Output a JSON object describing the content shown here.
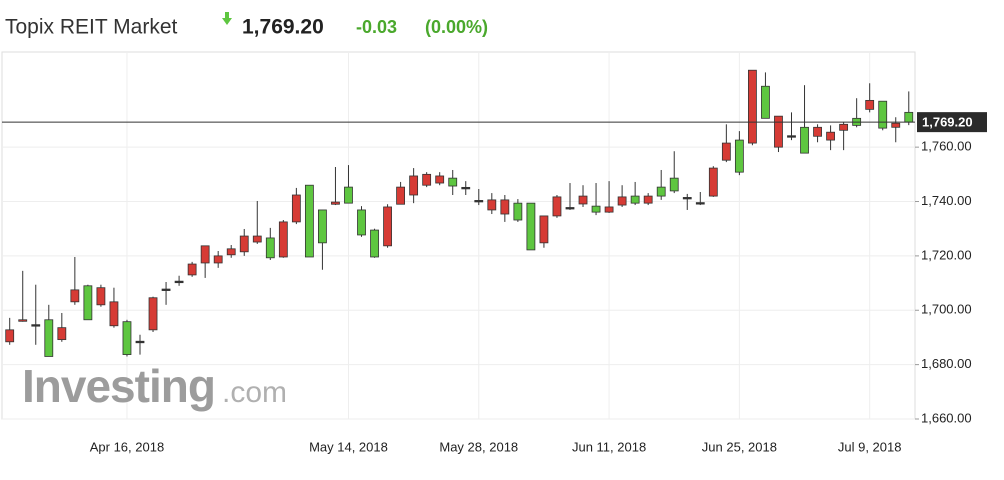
{
  "chart_data": {
    "type": "candlestick",
    "title": "Topix REIT Market",
    "price": "1,769.20",
    "change": "-0.03",
    "change_pct": "(0.00%)",
    "watermark": {
      "brand": "Investing",
      "suffix": ".com"
    },
    "categories": [
      null,
      null,
      null,
      null,
      null,
      null,
      null,
      null,
      null,
      "Apr 16, 2018",
      null,
      null,
      null,
      null,
      null,
      null,
      null,
      null,
      null,
      null,
      null,
      null,
      null,
      null,
      null,
      null,
      "May 14, 2018",
      null,
      null,
      null,
      null,
      null,
      null,
      null,
      null,
      null,
      "May 28, 2018",
      null,
      null,
      null,
      null,
      null,
      null,
      null,
      null,
      null,
      "Jun 11, 2018",
      null,
      null,
      null,
      null,
      null,
      null,
      null,
      null,
      null,
      "Jun 25, 2018",
      null,
      null,
      null,
      null,
      null,
      null,
      null,
      null,
      null,
      "Jul 9, 2018",
      null,
      null,
      null
    ],
    "series": [
      {
        "up_color": "#d63b35",
        "down_color": "#5ec640",
        "open": [
          1688.4,
          1696,
          1694.5,
          1696.5,
          1689.2,
          1703.1,
          1709,
          1702,
          1694.3,
          1695.8,
          1688.4,
          1692.8,
          1707.5,
          1710.4,
          1713,
          1717.4,
          1717.4,
          1720.4,
          1721.5,
          1725.1,
          1726.6,
          1719.6,
          1732.5,
          1746,
          1736.9,
          1739,
          1745.3,
          1736.9,
          1729.5,
          1723.7,
          1739,
          1742.4,
          1746,
          1746.8,
          1748.6,
          1745,
          1740.2,
          1736.9,
          1735.4,
          1739.4,
          1739.4,
          1724.8,
          1734.7,
          1737.6,
          1739.1,
          1738.3,
          1736.1,
          1738.7,
          1742,
          1739.4,
          1745.3,
          1748.6,
          1741.3,
          1739.4,
          1742,
          1755.2,
          1762.6,
          1761.5,
          1782.4,
          1760,
          1764,
          1767.3,
          1764,
          1762.6,
          1766.2,
          1770.6,
          1773.9,
          1776.9,
          1767.3,
          1772.8
        ],
        "high": [
          1697.2,
          1714.5,
          1709.4,
          1702,
          1699,
          1719.6,
          1709.4,
          1709.4,
          1708.3,
          1696.5,
          1691,
          1705,
          1710.4,
          1712.7,
          1717.8,
          1723.7,
          1721.8,
          1724,
          1729.9,
          1740.2,
          1730.3,
          1733.2,
          1745,
          1746,
          1736.9,
          1752.7,
          1753.4,
          1738.3,
          1730,
          1739,
          1747.2,
          1752.3,
          1750.8,
          1750.8,
          1751.6,
          1747.5,
          1744.6,
          1743.1,
          1742.4,
          1740.9,
          1739.4,
          1734.7,
          1742.4,
          1746.8,
          1746,
          1746.8,
          1747.5,
          1746,
          1747.2,
          1743.1,
          1751.6,
          1758.5,
          1742.8,
          1743.5,
          1753,
          1768.4,
          1765.9,
          1788.3,
          1787.5,
          1771.4,
          1772.8,
          1782.8,
          1768.4,
          1768,
          1769.2,
          1778,
          1783.5,
          1776.9,
          1771,
          1780.5
        ],
        "low": [
          1687.3,
          1695.8,
          1687.3,
          1683,
          1688.4,
          1702,
          1696.5,
          1701.3,
          1693.6,
          1683,
          1683.7,
          1692,
          1702,
          1709,
          1712.3,
          1711.9,
          1715.6,
          1719.3,
          1720,
          1724.4,
          1718.5,
          1719.3,
          1731.7,
          1719.6,
          1714.9,
          1738.7,
          1739.4,
          1727,
          1719.3,
          1723,
          1739,
          1739.4,
          1745.3,
          1746,
          1742.4,
          1742.4,
          1738.7,
          1735.4,
          1732.5,
          1732.5,
          1722.2,
          1723,
          1734,
          1736.9,
          1738,
          1735,
          1735.8,
          1738,
          1738.7,
          1738.7,
          1740.6,
          1743.1,
          1736.9,
          1738.7,
          1741.7,
          1754.5,
          1749.7,
          1760.7,
          1770.6,
          1758.2,
          1762.6,
          1757.8,
          1761.8,
          1758.9,
          1758.9,
          1767.3,
          1772.8,
          1766.2,
          1761.8,
          1768.1
        ],
        "close": [
          1692.8,
          1696.5,
          1694.7,
          1683,
          1693.6,
          1707.5,
          1696.5,
          1708.3,
          1703.1,
          1683.7,
          1688.6,
          1704.6,
          1707.8,
          1710.7,
          1717,
          1723.7,
          1720,
          1722.6,
          1727.3,
          1727.3,
          1719.3,
          1732.5,
          1742.4,
          1719.6,
          1724.8,
          1739.8,
          1739.4,
          1727.7,
          1719.6,
          1738,
          1745.3,
          1749.4,
          1750,
          1749.4,
          1745.7,
          1745.2,
          1740.4,
          1740.6,
          1740.6,
          1733.2,
          1722.2,
          1734.7,
          1741.7,
          1737.8,
          1742,
          1736.1,
          1738,
          1741.7,
          1739.4,
          1742,
          1742,
          1743.9,
          1741.5,
          1739.6,
          1752.3,
          1761.5,
          1750.8,
          1788.3,
          1770.6,
          1771.4,
          1764.2,
          1757.8,
          1767.3,
          1765.5,
          1768.4,
          1768,
          1777.2,
          1767,
          1768.8,
          1769.2
        ]
      }
    ],
    "last_price": {
      "value": 1769.2,
      "label": "1,769.20"
    },
    "ylim": [
      1660,
      1795
    ],
    "yticks": [
      {
        "value": 1660,
        "label": "1,660.00"
      },
      {
        "value": 1680,
        "label": "1,680.00"
      },
      {
        "value": 1700,
        "label": "1,700.00"
      },
      {
        "value": 1720,
        "label": "1,720.00"
      },
      {
        "value": 1740,
        "label": "1,740.00"
      },
      {
        "value": 1760,
        "label": "1,760.00"
      }
    ],
    "grid": true
  }
}
